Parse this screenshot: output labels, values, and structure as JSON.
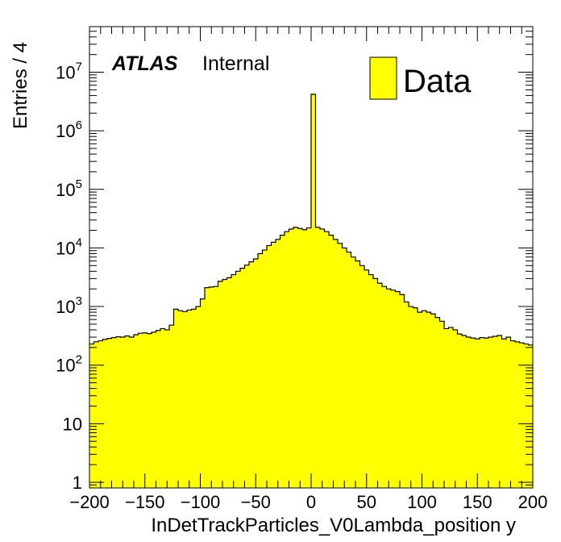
{
  "chart_data": {
    "type": "bar",
    "title": "",
    "xlabel": "InDetTrackParticles_V0Lambda_position y",
    "ylabel": "Entries / 4",
    "xlim": [
      -200,
      200
    ],
    "ylim": [
      0.8,
      60000000
    ],
    "y_scale": "log",
    "bin_width": 4,
    "x_ticks": [
      -200,
      -150,
      -100,
      -50,
      0,
      50,
      100,
      150,
      200
    ],
    "x_tick_labels": [
      "−200",
      "−150",
      "−100",
      "−50",
      "0",
      "50",
      "100",
      "150",
      "200"
    ],
    "y_ticks": [
      1,
      10,
      100,
      1000,
      10000,
      100000,
      1000000,
      10000000
    ],
    "y_tick_labels": [
      {
        "text": "1",
        "exp": ""
      },
      {
        "text": "10",
        "exp": ""
      },
      {
        "text": "10",
        "exp": "2"
      },
      {
        "text": "10",
        "exp": "3"
      },
      {
        "text": "10",
        "exp": "4"
      },
      {
        "text": "10",
        "exp": "5"
      },
      {
        "text": "10",
        "exp": "6"
      },
      {
        "text": "10",
        "exp": "7"
      }
    ],
    "annotations": {
      "experiment": "ATLAS",
      "status": "Internal"
    },
    "legend_position": "top-right",
    "series": [
      {
        "name": "Data",
        "color": "#ffff00",
        "edge_color": "#000000",
        "bin_low_edges": [
          -200,
          -196,
          -192,
          -188,
          -184,
          -180,
          -176,
          -172,
          -168,
          -164,
          -160,
          -156,
          -152,
          -148,
          -144,
          -140,
          -136,
          -132,
          -128,
          -124,
          -120,
          -116,
          -112,
          -108,
          -104,
          -100,
          -96,
          -92,
          -88,
          -84,
          -80,
          -76,
          -72,
          -68,
          -64,
          -60,
          -56,
          -52,
          -48,
          -44,
          -40,
          -36,
          -32,
          -28,
          -24,
          -20,
          -16,
          -12,
          -8,
          -4,
          0,
          4,
          8,
          12,
          16,
          20,
          24,
          28,
          32,
          36,
          40,
          44,
          48,
          52,
          56,
          60,
          64,
          68,
          72,
          76,
          80,
          84,
          88,
          92,
          96,
          100,
          104,
          108,
          112,
          116,
          120,
          124,
          128,
          132,
          136,
          140,
          144,
          148,
          152,
          156,
          160,
          164,
          168,
          172,
          176,
          180,
          184,
          188,
          192,
          196
        ],
        "values": [
          230,
          250,
          260,
          275,
          285,
          295,
          305,
          300,
          315,
          300,
          330,
          350,
          355,
          345,
          365,
          390,
          420,
          400,
          480,
          900,
          850,
          820,
          870,
          900,
          1000,
          1350,
          2100,
          2150,
          2200,
          2700,
          2900,
          3100,
          3500,
          4000,
          4500,
          5100,
          5800,
          6500,
          8000,
          9200,
          11000,
          12500,
          14000,
          16500,
          19000,
          21000,
          22500,
          21500,
          20500,
          22000,
          4200000,
          22500,
          21000,
          19000,
          16500,
          14000,
          12000,
          10000,
          8500,
          7000,
          6000,
          5000,
          4200,
          3500,
          3000,
          2500,
          2200,
          2000,
          1900,
          1800,
          1600,
          1200,
          1000,
          950,
          800,
          850,
          800,
          750,
          650,
          560,
          420,
          440,
          400,
          340,
          320,
          300,
          290,
          280,
          295,
          290,
          300,
          310,
          320,
          280,
          300,
          260,
          250,
          240,
          230,
          220
        ]
      }
    ]
  }
}
